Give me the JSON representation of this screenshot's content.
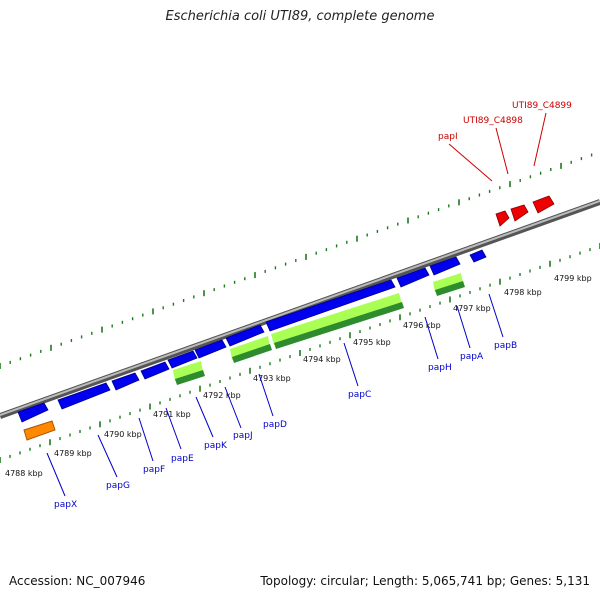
{
  "title": "Escherichia coli UTI89, complete genome",
  "accession": "Accession: NC_007946",
  "summary": "Topology: circular; Length: 5,065,741 bp; Genes: 5,131",
  "colors": {
    "backbone": "#888888",
    "tick": "#1f7a1f",
    "gene_forward": "#0000ee",
    "gene_highlight": "#ee0000",
    "gene_label_blue": "#0000cc",
    "gene_label_red": "#cc0000",
    "cds_light": "#aaff55",
    "cds_dark": "#2e8b2e",
    "rna_orange": "#ff8800"
  },
  "scale": {
    "unit": "kbp",
    "labels": [
      "4788 kbp",
      "4789 kbp",
      "4790 kbp",
      "4791 kbp",
      "4792 kbp",
      "4793 kbp",
      "4794 kbp",
      "4795 kbp",
      "4796 kbp",
      "4797 kbp",
      "4798 kbp",
      "4799 kbp"
    ]
  },
  "genes_bottom": [
    "papX",
    "papG",
    "papF",
    "papE",
    "papK",
    "papJ",
    "papD",
    "papC",
    "papH",
    "papA",
    "papB"
  ],
  "genes_top": [
    "papI",
    "UTI89_C4898",
    "UTI89_C4899"
  ]
}
